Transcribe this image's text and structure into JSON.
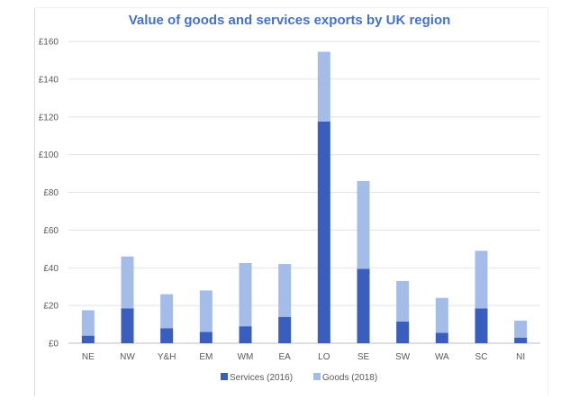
{
  "chart_data": {
    "type": "bar",
    "stacked": true,
    "title": "Value of goods and services exports by UK region",
    "categories": [
      "NE",
      "NW",
      "Y&H",
      "EM",
      "WM",
      "EA",
      "LO",
      "SE",
      "SW",
      "WA",
      "SC",
      "NI"
    ],
    "series": [
      {
        "name": "Services (2016)",
        "color": "#3a5ebd",
        "values": [
          4,
          18.5,
          8,
          6,
          9,
          14,
          117.5,
          39.5,
          11.5,
          5.5,
          18.5,
          3
        ]
      },
      {
        "name": "Goods (2018)",
        "color": "#a4bce8",
        "values": [
          13.5,
          27.5,
          18,
          22,
          33.5,
          28,
          37,
          46.5,
          21.5,
          18.5,
          30.5,
          9
        ]
      }
    ],
    "y_ticks": [
      "£0",
      "£20",
      "£40",
      "£60",
      "£80",
      "£100",
      "£120",
      "£140",
      "£160"
    ],
    "ylim": [
      0,
      160
    ],
    "grid": true,
    "legend_position": "bottom"
  }
}
